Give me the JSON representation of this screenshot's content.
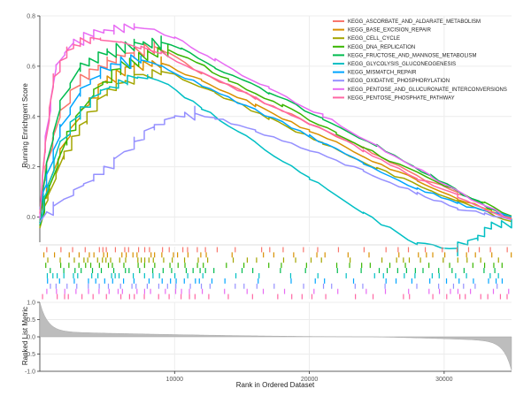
{
  "chart_data": {
    "type": "line",
    "title": "",
    "xlabel": "Rank in Ordered Dataset",
    "ylabel_top": "Running Enrichment Score",
    "ylabel_bottom": "Ranked List Metric",
    "xlim": [
      0,
      35000
    ],
    "ylim_top": [
      -0.1,
      0.8
    ],
    "ylim_bottom": [
      -1.0,
      1.0
    ],
    "x_ticks": [
      10000,
      20000,
      30000
    ],
    "y_ticks_top": [
      0.0,
      0.2,
      0.4,
      0.6,
      0.8
    ],
    "y_tick_labels_top": [
      "0.0",
      "0.2",
      "0.4",
      "0.6",
      "0.8"
    ],
    "y_ticks_bottom": [
      1.0,
      0.5,
      0.0,
      -0.5,
      -1.0
    ],
    "y_tick_labels_bottom": [
      "1.0",
      "0.5",
      "0.0",
      "-0.5",
      "-1.0"
    ],
    "grid": true,
    "legend_position": "top-right",
    "series": [
      {
        "name": "KEGG_ASCORBATE_AND_ALDARATE_METABOLISM",
        "color": "#f8766d",
        "x": [
          0,
          400,
          1500,
          3000,
          5000,
          7000,
          8500,
          9500,
          12000,
          16000,
          20000,
          24000,
          28000,
          31000,
          33000,
          35000
        ],
        "y": [
          0.0,
          0.18,
          0.42,
          0.55,
          0.62,
          0.66,
          0.68,
          0.66,
          0.58,
          0.48,
          0.38,
          0.28,
          0.17,
          0.1,
          0.05,
          0.0
        ]
      },
      {
        "name": "KEGG_BASE_EXCISION_REPAIR",
        "color": "#d89000",
        "x": [
          0,
          500,
          1500,
          3000,
          5000,
          7000,
          9000,
          12000,
          16000,
          20000,
          24000,
          28000,
          31000,
          33500,
          35000
        ],
        "y": [
          0.0,
          0.1,
          0.26,
          0.42,
          0.55,
          0.6,
          0.62,
          0.55,
          0.45,
          0.35,
          0.25,
          0.15,
          0.08,
          0.03,
          0.0
        ]
      },
      {
        "name": "KEGG_CELL_CYCLE",
        "color": "#a3a500",
        "x": [
          0,
          600,
          1800,
          3500,
          5000,
          7000,
          9000,
          10000,
          13000,
          17000,
          21000,
          25000,
          29000,
          32000,
          35000
        ],
        "y": [
          -0.02,
          0.08,
          0.25,
          0.4,
          0.5,
          0.56,
          0.58,
          0.57,
          0.5,
          0.4,
          0.3,
          0.2,
          0.11,
          0.05,
          -0.01
        ]
      },
      {
        "name": "KEGG_DNA_REPLICATION",
        "color": "#39b600",
        "x": [
          0,
          700,
          2000,
          4000,
          6000,
          8000,
          9500,
          11000,
          14000,
          18000,
          22000,
          26000,
          30000,
          33000,
          35000
        ],
        "y": [
          -0.02,
          0.12,
          0.32,
          0.5,
          0.6,
          0.65,
          0.67,
          0.64,
          0.55,
          0.45,
          0.34,
          0.23,
          0.13,
          0.06,
          0.01
        ]
      },
      {
        "name": "KEGG_FRUCTOSE_AND_MANNOSE_METABOLISM",
        "color": "#00bb4e",
        "x": [
          0,
          500,
          1500,
          3000,
          5000,
          7000,
          9000,
          10500,
          13000,
          17000,
          21000,
          25000,
          29000,
          32000,
          35000
        ],
        "y": [
          0.0,
          0.2,
          0.45,
          0.6,
          0.66,
          0.69,
          0.7,
          0.68,
          0.6,
          0.5,
          0.4,
          0.29,
          0.17,
          0.08,
          0.0
        ]
      },
      {
        "name": "KEGG_GLYCOLYSIS_GLUCONEOGENESIS",
        "color": "#00bfc4",
        "x": [
          0,
          600,
          1500,
          3000,
          4500,
          6500,
          8000,
          9500,
          12000,
          16000,
          20000,
          24000,
          28000,
          31000,
          32500,
          33500,
          35000
        ],
        "y": [
          0.0,
          0.12,
          0.3,
          0.42,
          0.5,
          0.55,
          0.56,
          0.53,
          0.44,
          0.3,
          0.16,
          0.02,
          -0.1,
          -0.12,
          -0.08,
          -0.03,
          -0.02
        ]
      },
      {
        "name": "KEGG_MISMATCH_REPAIR",
        "color": "#00a5ff",
        "x": [
          0,
          500,
          1500,
          3000,
          4500,
          6000,
          7500,
          9000,
          12000,
          16000,
          20000,
          24000,
          28000,
          31000,
          35000
        ],
        "y": [
          0.05,
          0.15,
          0.35,
          0.5,
          0.58,
          0.62,
          0.63,
          0.61,
          0.53,
          0.43,
          0.33,
          0.22,
          0.12,
          0.06,
          0.01
        ]
      },
      {
        "name": "KEGG_OXIDATIVE_PHOSPHORYLATION",
        "color": "#9590ff",
        "x": [
          0,
          1000,
          2500,
          4000,
          5500,
          7000,
          8500,
          10000,
          11500,
          13000,
          16000,
          20000,
          24000,
          28000,
          31000,
          33000,
          35000
        ],
        "y": [
          0.0,
          0.04,
          0.1,
          0.16,
          0.22,
          0.3,
          0.36,
          0.4,
          0.42,
          0.4,
          0.35,
          0.27,
          0.19,
          0.1,
          0.04,
          0.02,
          0.0
        ]
      },
      {
        "name": "KEGG_PENTOSE_AND_GLUCURONATE_INTERCONVERSIONS",
        "color": "#e76bf3",
        "x": [
          0,
          400,
          1200,
          2500,
          4000,
          5500,
          7000,
          8500,
          10000,
          13000,
          17000,
          21000,
          25000,
          29000,
          32000,
          35000
        ],
        "y": [
          0.02,
          0.3,
          0.6,
          0.7,
          0.73,
          0.75,
          0.76,
          0.75,
          0.72,
          0.63,
          0.52,
          0.41,
          0.29,
          0.17,
          0.08,
          0.0
        ]
      },
      {
        "name": "KEGG_PENTOSE_PHOSPHATE_PATHWAY",
        "color": "#ff67a4",
        "x": [
          0,
          400,
          1000,
          2000,
          3000,
          4500,
          6000,
          7500,
          9000,
          12000,
          16000,
          20000,
          24000,
          28000,
          31000,
          33000,
          35000
        ],
        "y": [
          0.03,
          0.28,
          0.55,
          0.66,
          0.7,
          0.71,
          0.7,
          0.68,
          0.66,
          0.58,
          0.48,
          0.38,
          0.27,
          0.16,
          0.09,
          0.04,
          0.0
        ]
      }
    ]
  }
}
